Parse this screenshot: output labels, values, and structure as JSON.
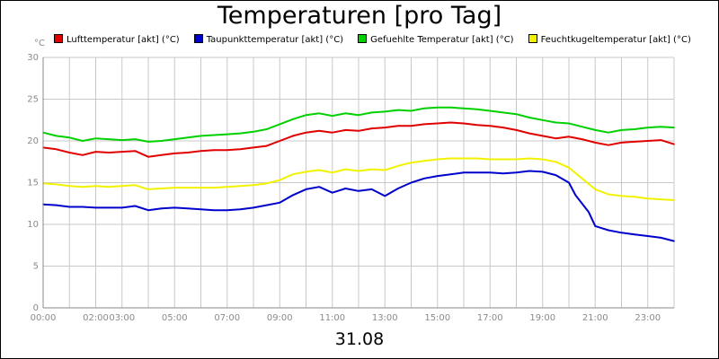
{
  "chart_data": {
    "type": "line",
    "title": "Temperaturen [pro Tag]",
    "ylabel": "°C",
    "xlabel": "31.08",
    "ylim": [
      0,
      30
    ],
    "yticks": [
      0,
      5,
      10,
      15,
      20,
      25,
      30
    ],
    "xlim": [
      0,
      24
    ],
    "xticks": [
      {
        "pos": 0,
        "label": "00:00"
      },
      {
        "pos": 2,
        "label": "02:00"
      },
      {
        "pos": 3,
        "label": "03:00"
      },
      {
        "pos": 5,
        "label": "05:00"
      },
      {
        "pos": 7,
        "label": "07:00"
      },
      {
        "pos": 9,
        "label": "09:00"
      },
      {
        "pos": 11,
        "label": "11:00"
      },
      {
        "pos": 13,
        "label": "13:00"
      },
      {
        "pos": 15,
        "label": "15:00"
      },
      {
        "pos": 17,
        "label": "17:00"
      },
      {
        "pos": 19,
        "label": "19:00"
      },
      {
        "pos": 21,
        "label": "21:00"
      },
      {
        "pos": 23,
        "label": "23:00"
      }
    ],
    "grid": true,
    "legend": "top",
    "series": [
      {
        "name": "Lufttemperatur [akt] (°C)",
        "color": "#e00000",
        "x": [
          0,
          0.5,
          1,
          1.5,
          2,
          2.5,
          3,
          3.5,
          4,
          4.5,
          5,
          5.5,
          6,
          6.5,
          7,
          7.5,
          8,
          8.5,
          9,
          9.5,
          10,
          10.5,
          11,
          11.5,
          12,
          12.5,
          13,
          13.5,
          14,
          14.5,
          15,
          15.5,
          16,
          16.5,
          17,
          17.5,
          18,
          18.5,
          19,
          19.5,
          20,
          20.5,
          21,
          21.5,
          22,
          22.5,
          23,
          23.5,
          24
        ],
        "values": [
          19.2,
          19.0,
          18.6,
          18.3,
          18.7,
          18.6,
          18.7,
          18.8,
          18.1,
          18.3,
          18.5,
          18.6,
          18.8,
          18.9,
          18.9,
          19.0,
          19.2,
          19.4,
          20.0,
          20.6,
          21.0,
          21.2,
          21.0,
          21.3,
          21.2,
          21.5,
          21.6,
          21.8,
          21.8,
          22.0,
          22.1,
          22.2,
          22.1,
          21.9,
          21.8,
          21.6,
          21.3,
          20.9,
          20.6,
          20.3,
          20.5,
          20.2,
          19.8,
          19.5,
          19.8,
          19.9,
          20.0,
          20.1,
          19.6
        ]
      },
      {
        "name": "Taupunkttemperatur [akt] (°C)",
        "color": "#0000cc",
        "x": [
          0,
          0.5,
          1,
          1.5,
          2,
          2.5,
          3,
          3.5,
          4,
          4.5,
          5,
          5.5,
          6,
          6.5,
          7,
          7.5,
          8,
          8.5,
          9,
          9.5,
          10,
          10.5,
          11,
          11.5,
          12,
          12.5,
          13,
          13.5,
          14,
          14.5,
          15,
          15.5,
          16,
          16.5,
          17,
          17.5,
          18,
          18.5,
          19,
          19.5,
          20,
          20.25,
          20.5,
          20.75,
          21,
          21.5,
          22,
          22.5,
          23,
          23.5,
          24
        ],
        "values": [
          12.4,
          12.3,
          12.1,
          12.1,
          12.0,
          12.0,
          12.0,
          12.2,
          11.7,
          11.9,
          12.0,
          11.9,
          11.8,
          11.7,
          11.7,
          11.8,
          12.0,
          12.3,
          12.6,
          13.5,
          14.2,
          14.5,
          13.8,
          14.3,
          14.0,
          14.2,
          13.4,
          14.3,
          15.0,
          15.5,
          15.8,
          16.0,
          16.2,
          16.2,
          16.2,
          16.1,
          16.2,
          16.4,
          16.3,
          15.9,
          15.0,
          13.5,
          12.5,
          11.5,
          9.8,
          9.3,
          9.0,
          8.8,
          8.6,
          8.4,
          8.0
        ]
      },
      {
        "name": "Gefuehlte Temperatur [akt] (°C)",
        "color": "#00d000",
        "x": [
          0,
          0.5,
          1,
          1.5,
          2,
          2.5,
          3,
          3.5,
          4,
          4.5,
          5,
          5.5,
          6,
          6.5,
          7,
          7.5,
          8,
          8.5,
          9,
          9.5,
          10,
          10.5,
          11,
          11.5,
          12,
          12.5,
          13,
          13.5,
          14,
          14.5,
          15,
          15.5,
          16,
          16.5,
          17,
          17.5,
          18,
          18.5,
          19,
          19.5,
          20,
          20.5,
          21,
          21.5,
          22,
          22.5,
          23,
          23.5,
          24
        ],
        "values": [
          21.0,
          20.6,
          20.4,
          20.0,
          20.3,
          20.2,
          20.1,
          20.2,
          19.9,
          20.0,
          20.2,
          20.4,
          20.6,
          20.7,
          20.8,
          20.9,
          21.1,
          21.4,
          22.0,
          22.6,
          23.1,
          23.3,
          23.0,
          23.3,
          23.1,
          23.4,
          23.5,
          23.7,
          23.6,
          23.9,
          24.0,
          24.0,
          23.9,
          23.8,
          23.6,
          23.4,
          23.2,
          22.8,
          22.5,
          22.2,
          22.1,
          21.7,
          21.3,
          21.0,
          21.3,
          21.4,
          21.6,
          21.7,
          21.6
        ]
      },
      {
        "name": "Feuchtkugeltemperatur [akt] (°C)",
        "color": "#f2f200",
        "x": [
          0,
          0.5,
          1,
          1.5,
          2,
          2.5,
          3,
          3.5,
          4,
          4.5,
          5,
          5.5,
          6,
          6.5,
          7,
          7.5,
          8,
          8.5,
          9,
          9.5,
          10,
          10.5,
          11,
          11.5,
          12,
          12.5,
          13,
          13.5,
          14,
          14.5,
          15,
          15.5,
          16,
          16.5,
          17,
          17.5,
          18,
          18.5,
          19,
          19.5,
          20,
          20.5,
          21,
          21.5,
          22,
          22.5,
          23,
          23.5,
          24
        ],
        "values": [
          14.9,
          14.8,
          14.6,
          14.5,
          14.6,
          14.5,
          14.6,
          14.7,
          14.2,
          14.3,
          14.4,
          14.4,
          14.4,
          14.4,
          14.5,
          14.6,
          14.7,
          14.9,
          15.3,
          16.0,
          16.3,
          16.5,
          16.2,
          16.6,
          16.4,
          16.6,
          16.5,
          17.0,
          17.4,
          17.6,
          17.8,
          17.9,
          17.9,
          17.9,
          17.8,
          17.8,
          17.8,
          17.9,
          17.8,
          17.5,
          16.8,
          15.5,
          14.2,
          13.6,
          13.4,
          13.3,
          13.1,
          13.0,
          12.9
        ]
      }
    ]
  }
}
